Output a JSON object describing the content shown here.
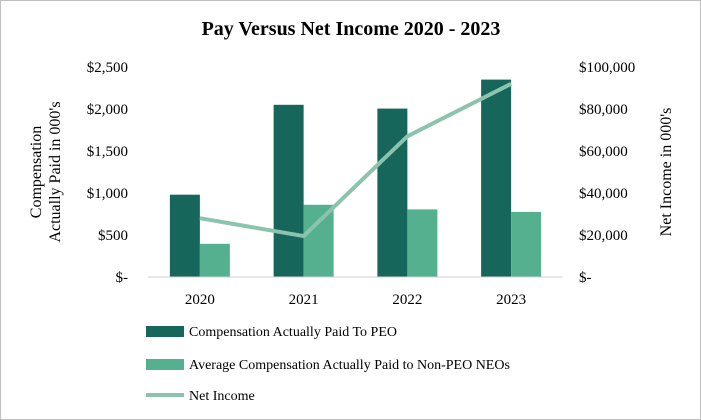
{
  "chart_data": {
    "type": "bar",
    "title": "Pay Versus Net Income 2020 - 2023",
    "categories": [
      "2020",
      "2021",
      "2022",
      "2023"
    ],
    "series": [
      {
        "name": "Compensation Actually Paid To PEO",
        "type": "bar",
        "axis": "left",
        "color": "#17665c",
        "values": [
          980,
          2050,
          2005,
          2350
        ]
      },
      {
        "name": "Average Compensation Actually Paid to Non-PEO NEOs",
        "type": "bar",
        "axis": "left",
        "color": "#55b08f",
        "values": [
          395,
          860,
          805,
          775
        ]
      },
      {
        "name": "Net Income",
        "type": "line",
        "axis": "right",
        "color": "#8cc3ad",
        "values": [
          28000,
          19500,
          67000,
          92000
        ]
      }
    ],
    "left_axis": {
      "label_line1": "Compensation",
      "label_line2": "Actually Paid in 000's",
      "ylim": [
        0,
        2500
      ],
      "ticks": [
        0,
        500,
        1000,
        1500,
        2000,
        2500
      ],
      "tick_labels": [
        "$-",
        "$500",
        "$1,000",
        "$1,500",
        "$2,000",
        "$2,500"
      ]
    },
    "right_axis": {
      "label": "Net Income in 000's",
      "ylim": [
        0,
        100000
      ],
      "ticks": [
        0,
        20000,
        40000,
        60000,
        80000,
        100000
      ],
      "tick_labels": [
        "$-",
        "$20,000",
        "$40,000",
        "$60,000",
        "$80,000",
        "$100,000"
      ]
    },
    "grid": false,
    "legend_position": "bottom"
  }
}
